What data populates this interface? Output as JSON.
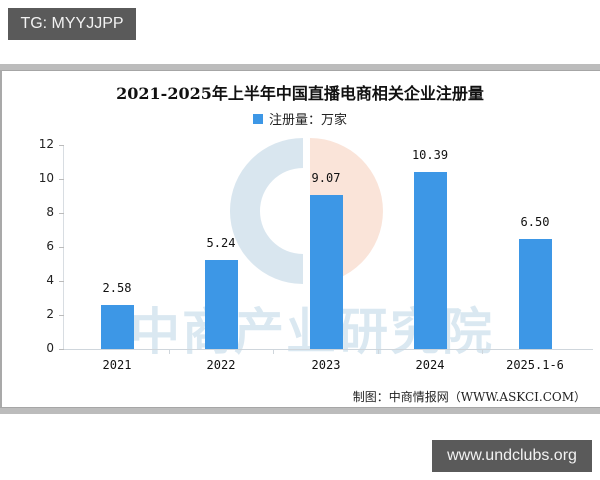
{
  "overlays": {
    "top_left_tag": "TG: MYYJJPP",
    "bottom_right_tag": "www.undclubs.org"
  },
  "chart": {
    "title": "2021-2025年上半年中国直播电商相关企业注册量",
    "legend_label": "注册量：万家",
    "source": "制图：中商情报网（WWW.ASKCI.COM）",
    "watermark": "中商产业研究院",
    "bar_color": "#3d97e6"
  },
  "chart_data": {
    "type": "bar",
    "title": "2021-2025年上半年中国直播电商相关企业注册量",
    "xlabel": "",
    "ylabel": "",
    "categories": [
      "2021",
      "2022",
      "2023",
      "2024",
      "2025.1-6"
    ],
    "series": [
      {
        "name": "注册量：万家",
        "values": [
          2.58,
          5.24,
          9.07,
          10.39,
          6.5
        ]
      }
    ],
    "value_labels": [
      "2.58",
      "5.24",
      "9.07",
      "10.39",
      "6.50"
    ],
    "yticks": [
      "0",
      "2",
      "4",
      "6",
      "8",
      "10",
      "12"
    ],
    "ylim": [
      0,
      12
    ],
    "grid": false,
    "legend_position": "top"
  }
}
